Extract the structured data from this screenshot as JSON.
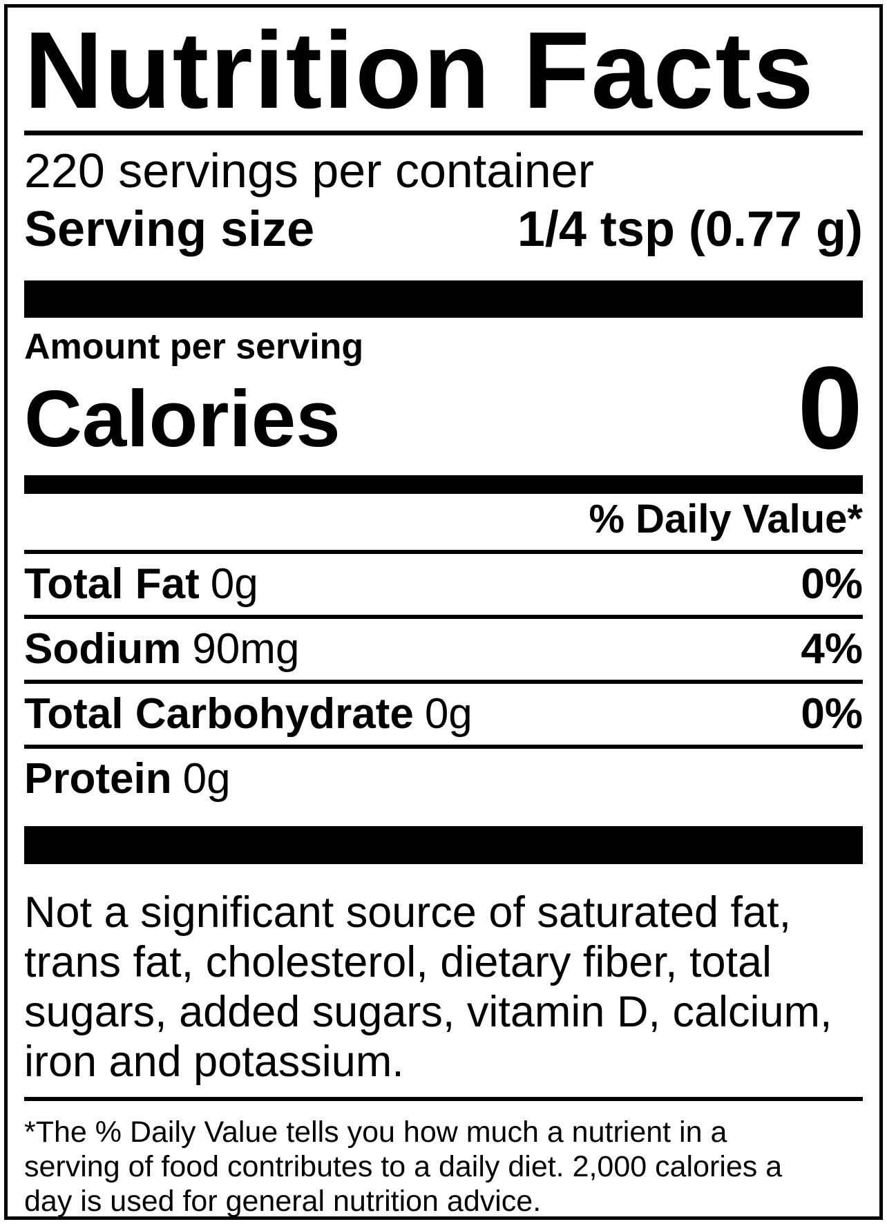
{
  "label": {
    "title": "Nutrition Facts",
    "servings_per_container": "220 servings per container",
    "serving_size": {
      "label": "Serving size",
      "value": "1/4 tsp (0.77 g)"
    },
    "amount_per_serving": "Amount per serving",
    "calories": {
      "label": "Calories",
      "value": "0"
    },
    "daily_value_header": "% Daily Value*",
    "nutrients": [
      {
        "name": "Total Fat",
        "amount": "0g",
        "dv": "0%"
      },
      {
        "name": "Sodium",
        "amount": "90mg",
        "dv": "4%"
      },
      {
        "name": "Total Carbohydrate",
        "amount": "0g",
        "dv": "0%"
      },
      {
        "name": "Protein",
        "amount": "0g",
        "dv": ""
      }
    ],
    "not_significant_lines": [
      "Not a significant source of saturated fat,",
      "trans fat, cholesterol, dietary fiber, total",
      "sugars, added sugars, vitamin D, calcium,",
      "iron and potassium."
    ],
    "footnote_lines": [
      "*The % Daily Value tells you how much a nutrient in a",
      "serving of food contributes to a daily diet. 2,000 calories a",
      "day is used for general nutrition advice."
    ],
    "colors": {
      "ink": "#000000",
      "background": "#ffffff"
    }
  }
}
